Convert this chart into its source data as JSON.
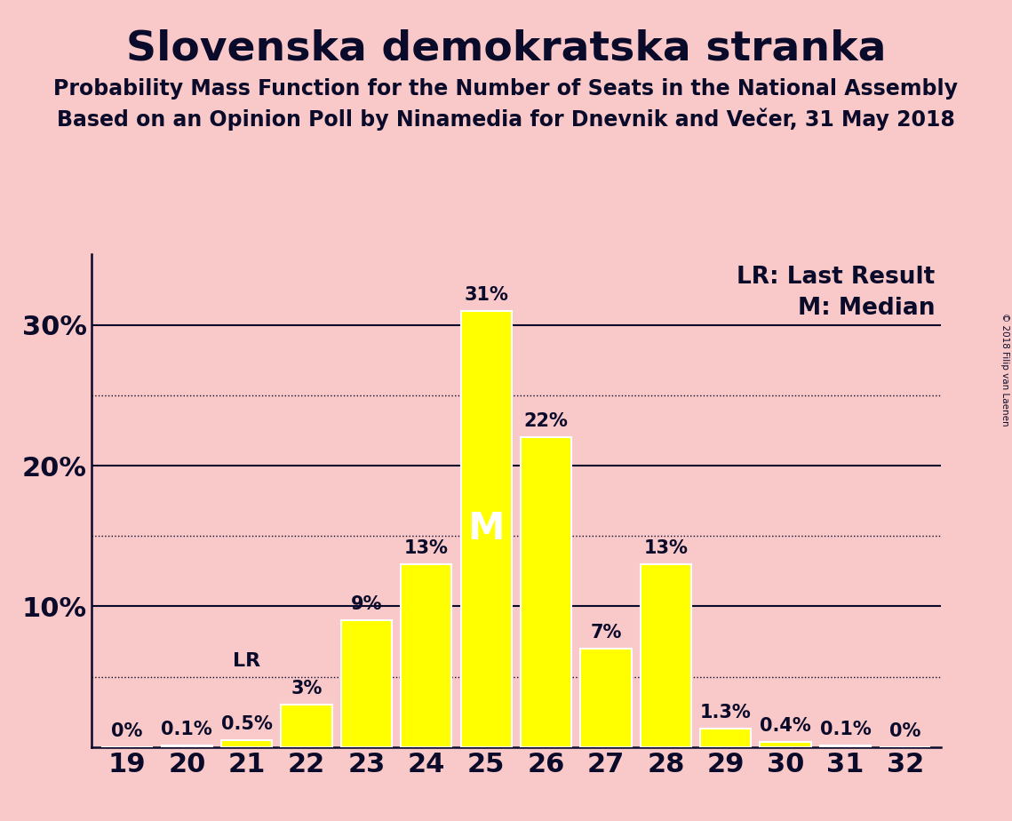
{
  "title": "Slovenska demokratska stranka",
  "subtitle1": "Probability Mass Function for the Number of Seats in the National Assembly",
  "subtitle2": "Based on an Opinion Poll by Ninamedia for Dnevnik and Večer, 31 May 2018",
  "copyright": "© 2018 Filip van Laenen",
  "categories": [
    19,
    20,
    21,
    22,
    23,
    24,
    25,
    26,
    27,
    28,
    29,
    30,
    31,
    32
  ],
  "values": [
    0.0,
    0.1,
    0.5,
    3.0,
    9.0,
    13.0,
    31.0,
    22.0,
    7.0,
    13.0,
    1.3,
    0.4,
    0.1,
    0.0
  ],
  "labels": [
    "0%",
    "0.1%",
    "0.5%",
    "3%",
    "9%",
    "13%",
    "31%",
    "22%",
    "7%",
    "13%",
    "1.3%",
    "0.4%",
    "0.1%",
    "0%"
  ],
  "bar_color": "#FFFF00",
  "bar_edge_color": "#FFFFFF",
  "background_color": "#F9C8C8",
  "plot_background_color": "#F9C8C8",
  "text_color": "#0A0A2A",
  "median_seat": 25,
  "last_result_seat": 21,
  "ylim": [
    0,
    35
  ],
  "yticks": [
    10,
    20,
    30
  ],
  "ytick_labels": [
    "10%",
    "20%",
    "30%"
  ],
  "solid_grid_lines": [
    10,
    20,
    30
  ],
  "dotted_grid_lines": [
    5,
    15,
    25
  ],
  "legend_lr": "LR: Last Result",
  "legend_m": "M: Median",
  "title_fontsize": 34,
  "subtitle_fontsize": 17,
  "label_fontsize": 15,
  "tick_fontsize": 22,
  "legend_fontsize": 19
}
